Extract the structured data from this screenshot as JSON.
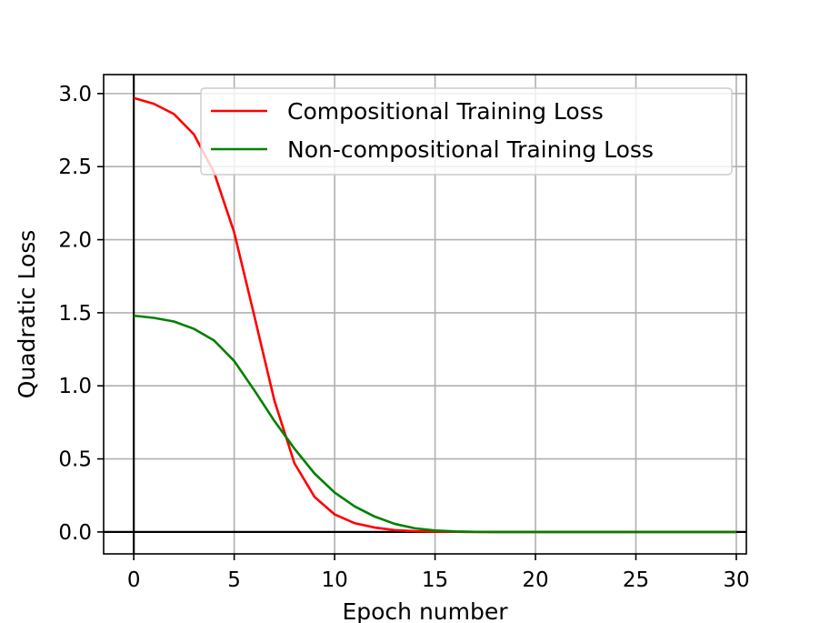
{
  "chart_data": {
    "type": "line",
    "title": "",
    "xlabel": "Epoch number",
    "ylabel": "Quadratic Loss",
    "xlim": [
      -1.5,
      30.5
    ],
    "ylim": [
      -0.15,
      3.13
    ],
    "xticks": [
      0,
      5,
      10,
      15,
      20,
      25,
      30
    ],
    "yticks": [
      0.0,
      0.5,
      1.0,
      1.5,
      2.0,
      2.5,
      3.0
    ],
    "xtick_labels": [
      "0",
      "5",
      "10",
      "15",
      "20",
      "25",
      "30"
    ],
    "ytick_labels": [
      "0.0",
      "0.5",
      "1.0",
      "1.5",
      "2.0",
      "2.5",
      "3.0"
    ],
    "grid": true,
    "legend_position": "upper right",
    "reference_lines": {
      "x": 0,
      "y": 0
    },
    "x": [
      0,
      1,
      2,
      3,
      4,
      5,
      6,
      7,
      8,
      9,
      10,
      11,
      12,
      13,
      14,
      15,
      16,
      17,
      18,
      19,
      20,
      21,
      22,
      23,
      24,
      25,
      26,
      27,
      28,
      29,
      30
    ],
    "series": [
      {
        "name": "Compositional Training Loss",
        "color": "#ff0000",
        "values": [
          2.97,
          2.93,
          2.86,
          2.72,
          2.46,
          2.05,
          1.48,
          0.9,
          0.47,
          0.24,
          0.12,
          0.06,
          0.03,
          0.012,
          0.005,
          0.002,
          0.001,
          0.0,
          0.0,
          0.0,
          0.0,
          0.0,
          0.0,
          0.0,
          0.0,
          0.0,
          0.0,
          0.0,
          0.0,
          0.0,
          0.0
        ]
      },
      {
        "name": "Non-compositional Training Loss",
        "color": "#008000",
        "values": [
          1.48,
          1.465,
          1.44,
          1.39,
          1.31,
          1.17,
          0.97,
          0.76,
          0.57,
          0.4,
          0.27,
          0.175,
          0.105,
          0.055,
          0.025,
          0.01,
          0.004,
          0.001,
          0.0,
          0.0,
          0.0,
          0.0,
          0.0,
          0.0,
          0.0,
          0.0,
          0.0,
          0.0,
          0.0,
          0.0,
          0.0
        ]
      }
    ]
  }
}
